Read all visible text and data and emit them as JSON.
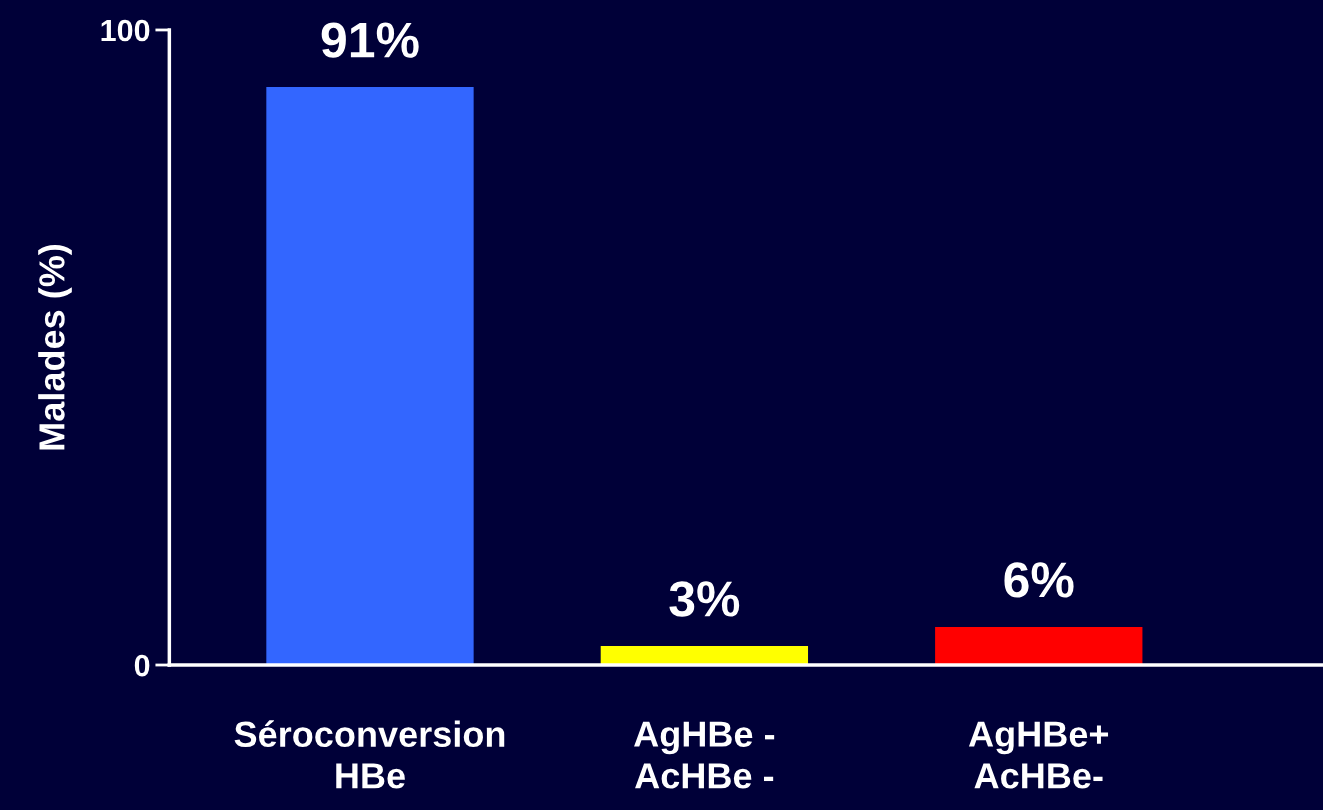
{
  "chart_data": {
    "type": "bar",
    "ylabel": "Malades (%)",
    "categories": [
      "Séroconversion\nHBe",
      "AgHBe -\nAcHBe -",
      "AgHBe+\nAcHBe-"
    ],
    "values": [
      91,
      3,
      6
    ],
    "value_labels": [
      "91%",
      "3%",
      "6%"
    ],
    "colors": [
      "#3366ff",
      "#ffff00",
      "#ff0000"
    ],
    "ylim": [
      0,
      100
    ],
    "yticks": [
      0,
      100
    ],
    "grid": false,
    "legend": false
  }
}
